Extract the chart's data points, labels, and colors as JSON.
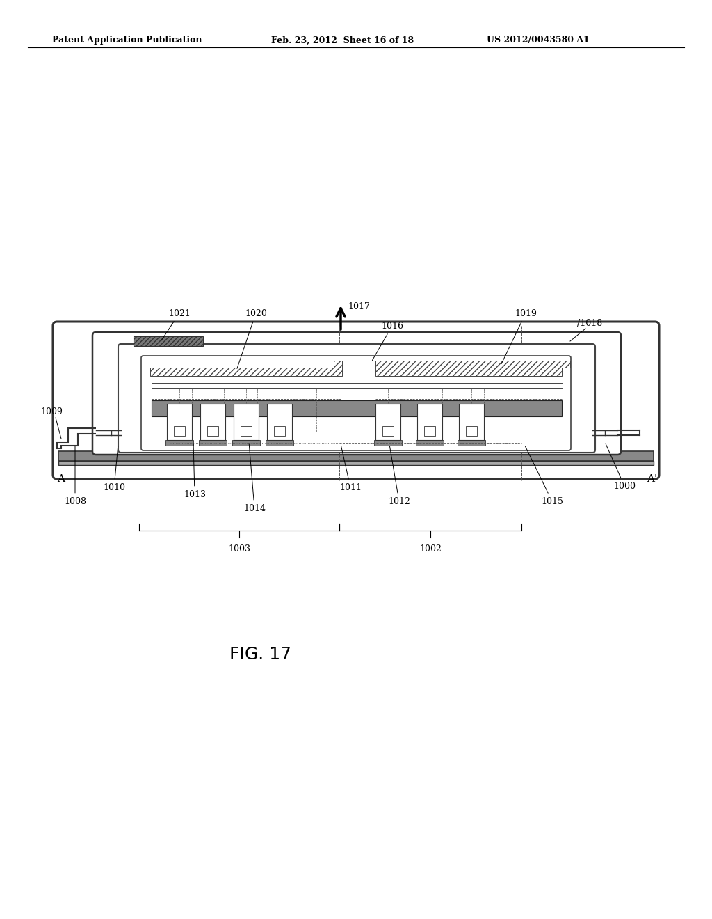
{
  "bg_color": "#ffffff",
  "header_left": "Patent Application Publication",
  "header_mid": "Feb. 23, 2012  Sheet 16 of 18",
  "header_right": "US 2012/0043580 A1",
  "figure_label": "FIG. 17",
  "lfs": 9.0
}
